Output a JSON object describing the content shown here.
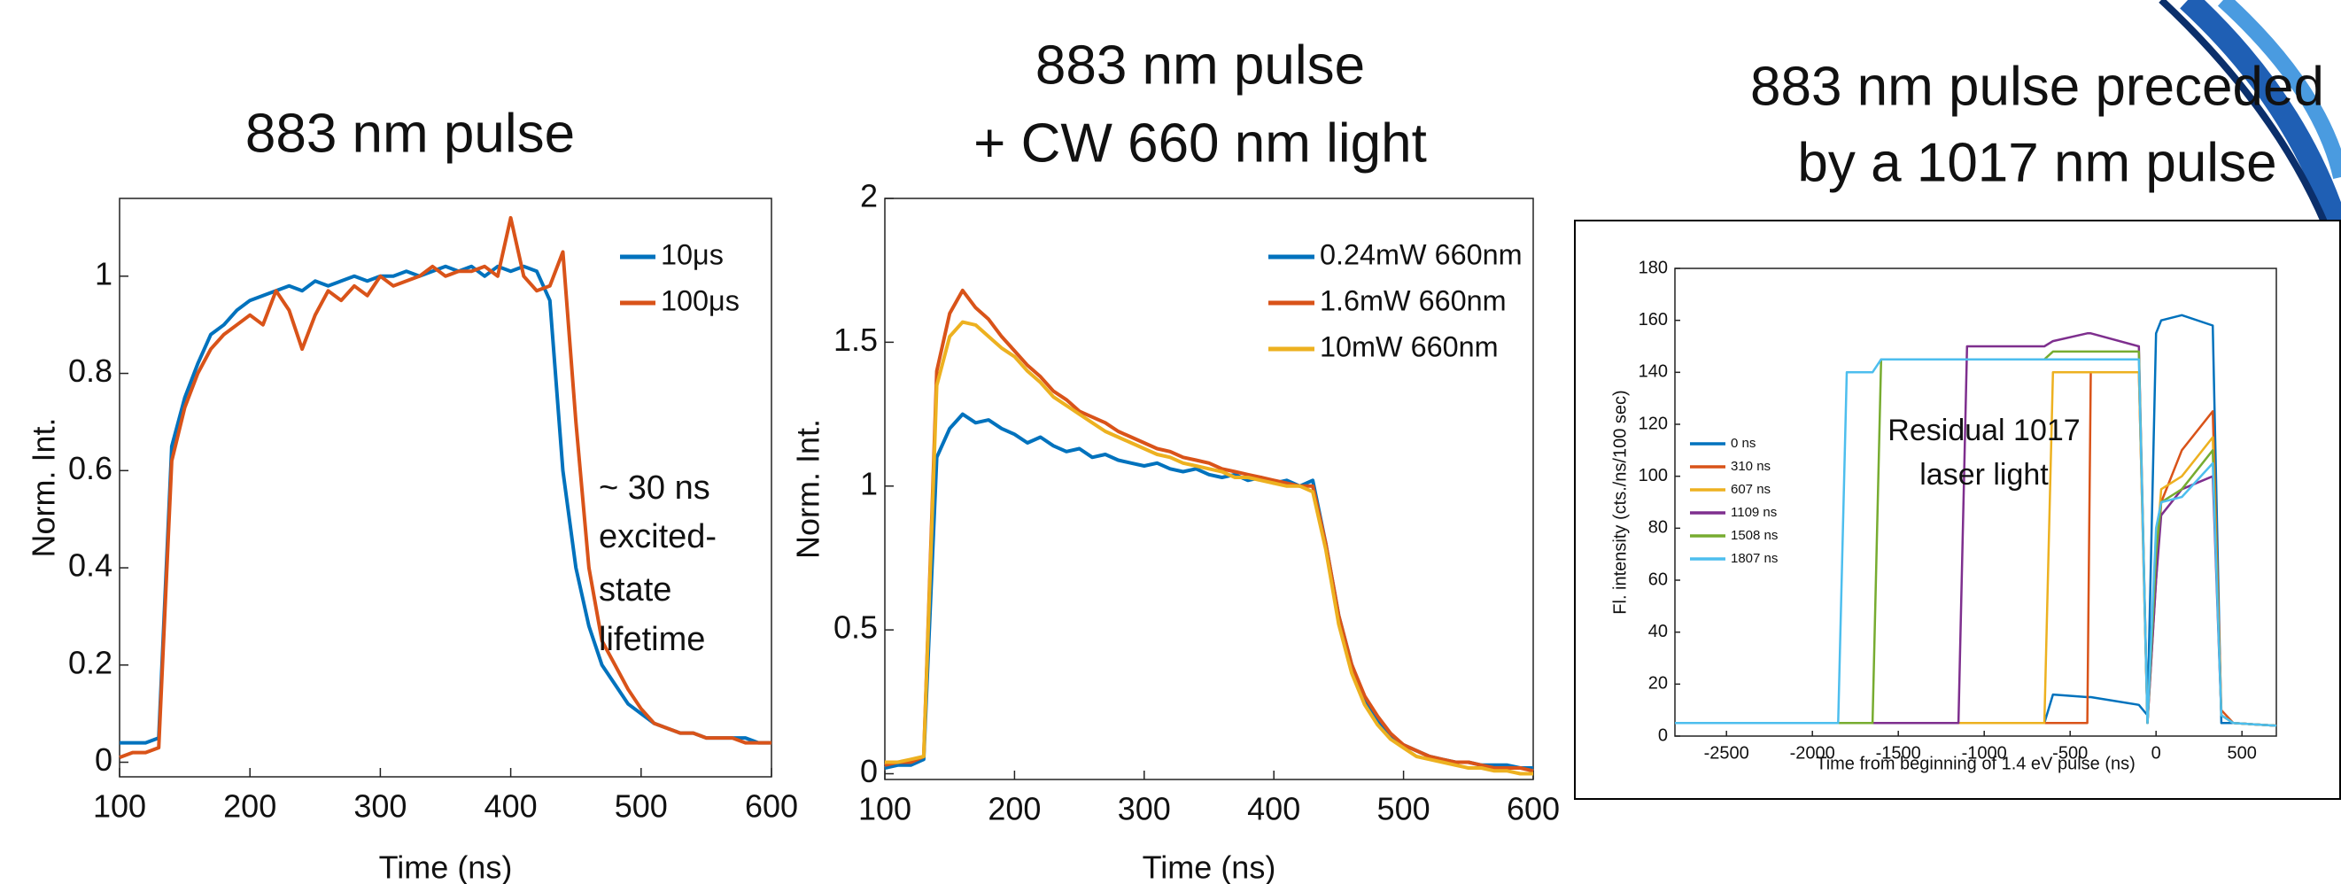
{
  "chart_data": [
    {
      "type": "line",
      "title": [
        "883 nm pulse"
      ],
      "xlabel": "Time (ns)",
      "ylabel": "Norm. Int.",
      "annotations": [
        "~ 30 ns",
        "excited-",
        "state",
        "lifetime"
      ],
      "x": [
        100,
        110,
        120,
        130,
        140,
        150,
        160,
        170,
        180,
        190,
        200,
        210,
        220,
        230,
        240,
        250,
        260,
        270,
        280,
        290,
        300,
        310,
        320,
        330,
        340,
        350,
        360,
        370,
        380,
        390,
        400,
        410,
        420,
        430,
        440,
        450,
        460,
        470,
        480,
        490,
        500,
        510,
        520,
        530,
        540,
        550,
        560,
        570,
        580,
        590,
        600
      ],
      "xlim": [
        100,
        600
      ],
      "xticks": [
        100,
        200,
        300,
        400,
        500,
        600
      ],
      "ylim": [
        -0.03,
        1.16
      ],
      "yticks": [
        0,
        0.2,
        0.4,
        0.6,
        0.8,
        1
      ],
      "series": [
        {
          "name": "10μs",
          "color": "#0072BD",
          "values": [
            0.04,
            0.04,
            0.04,
            0.05,
            0.65,
            0.75,
            0.82,
            0.88,
            0.9,
            0.93,
            0.95,
            0.96,
            0.97,
            0.98,
            0.97,
            0.99,
            0.98,
            0.99,
            1.0,
            0.99,
            1.0,
            1.0,
            1.01,
            1.0,
            1.01,
            1.02,
            1.01,
            1.02,
            1.0,
            1.02,
            1.01,
            1.02,
            1.01,
            0.95,
            0.6,
            0.4,
            0.28,
            0.2,
            0.16,
            0.12,
            0.1,
            0.08,
            0.07,
            0.06,
            0.06,
            0.05,
            0.05,
            0.05,
            0.05,
            0.04,
            0.04
          ]
        },
        {
          "name": "100μs",
          "color": "#D95319",
          "values": [
            0.01,
            0.02,
            0.02,
            0.03,
            0.62,
            0.73,
            0.8,
            0.85,
            0.88,
            0.9,
            0.92,
            0.9,
            0.97,
            0.93,
            0.85,
            0.92,
            0.97,
            0.95,
            0.98,
            0.96,
            1.0,
            0.98,
            0.99,
            1.0,
            1.02,
            1.0,
            1.01,
            1.01,
            1.02,
            1.0,
            1.12,
            1.0,
            0.97,
            0.98,
            1.05,
            0.7,
            0.4,
            0.25,
            0.2,
            0.15,
            0.11,
            0.08,
            0.07,
            0.06,
            0.06,
            0.05,
            0.05,
            0.05,
            0.04,
            0.04,
            0.04
          ]
        }
      ]
    },
    {
      "type": "line",
      "title": [
        "883 nm pulse",
        "+ CW 660 nm light"
      ],
      "xlabel": "Time (ns)",
      "ylabel": "Norm. Int.",
      "x": [
        100,
        110,
        120,
        130,
        140,
        150,
        160,
        170,
        180,
        190,
        200,
        210,
        220,
        230,
        240,
        250,
        260,
        270,
        280,
        290,
        300,
        310,
        320,
        330,
        340,
        350,
        360,
        370,
        380,
        390,
        400,
        410,
        420,
        430,
        440,
        450,
        460,
        470,
        480,
        490,
        500,
        510,
        520,
        530,
        540,
        550,
        560,
        570,
        580,
        590,
        600
      ],
      "xlim": [
        100,
        600
      ],
      "xticks": [
        100,
        200,
        300,
        400,
        500,
        600
      ],
      "ylim": [
        -0.02,
        2
      ],
      "yticks": [
        0,
        0.5,
        1,
        1.5,
        2
      ],
      "series": [
        {
          "name": "0.24mW 660nm",
          "color": "#0072BD",
          "values": [
            0.02,
            0.03,
            0.03,
            0.05,
            1.1,
            1.2,
            1.25,
            1.22,
            1.23,
            1.2,
            1.18,
            1.15,
            1.17,
            1.14,
            1.12,
            1.13,
            1.1,
            1.11,
            1.09,
            1.08,
            1.07,
            1.08,
            1.06,
            1.05,
            1.06,
            1.04,
            1.03,
            1.04,
            1.02,
            1.03,
            1.01,
            1.02,
            1.0,
            1.02,
            0.8,
            0.55,
            0.38,
            0.26,
            0.18,
            0.13,
            0.1,
            0.08,
            0.06,
            0.05,
            0.04,
            0.04,
            0.03,
            0.03,
            0.03,
            0.02,
            0.02
          ]
        },
        {
          "name": "1.6mW 660nm",
          "color": "#D95319",
          "values": [
            0.03,
            0.04,
            0.04,
            0.06,
            1.4,
            1.6,
            1.68,
            1.62,
            1.58,
            1.52,
            1.47,
            1.42,
            1.38,
            1.33,
            1.3,
            1.26,
            1.24,
            1.22,
            1.19,
            1.17,
            1.15,
            1.13,
            1.12,
            1.1,
            1.09,
            1.08,
            1.06,
            1.05,
            1.04,
            1.03,
            1.02,
            1.01,
            1.0,
            1.0,
            0.8,
            0.55,
            0.38,
            0.27,
            0.2,
            0.14,
            0.1,
            0.08,
            0.06,
            0.05,
            0.04,
            0.04,
            0.03,
            0.02,
            0.02,
            0.02,
            0.01
          ]
        },
        {
          "name": "10mW 660nm",
          "color": "#EDB120",
          "values": [
            0.04,
            0.04,
            0.05,
            0.06,
            1.35,
            1.52,
            1.57,
            1.56,
            1.52,
            1.48,
            1.45,
            1.4,
            1.36,
            1.31,
            1.28,
            1.25,
            1.22,
            1.19,
            1.17,
            1.15,
            1.13,
            1.11,
            1.1,
            1.08,
            1.07,
            1.06,
            1.05,
            1.03,
            1.03,
            1.02,
            1.01,
            1.0,
            1.0,
            0.98,
            0.78,
            0.52,
            0.35,
            0.24,
            0.17,
            0.12,
            0.09,
            0.06,
            0.05,
            0.04,
            0.03,
            0.02,
            0.02,
            0.01,
            0.01,
            0.0,
            0.0
          ]
        }
      ]
    },
    {
      "type": "line",
      "title": [
        "883 nm pulse preceded",
        "by a 1017 nm pulse"
      ],
      "xlabel": "Time from beginning of 1.4 eV pulse (ns)",
      "ylabel": "Fl. intensity (cts./ns/100 sec)",
      "annotations": [
        "Residual 1017",
        "laser light"
      ],
      "x": [
        -2800,
        -1850,
        -1800,
        -1650,
        -1600,
        -1150,
        -1100,
        -650,
        -600,
        -400,
        -380,
        -100,
        -50,
        0,
        30,
        150,
        330,
        380,
        450,
        700
      ],
      "xlim": [
        -2800,
        700
      ],
      "xticks": [
        -2500,
        -2000,
        -1500,
        -1000,
        -500,
        0,
        500
      ],
      "ylim": [
        0,
        180
      ],
      "yticks": [
        0,
        20,
        40,
        60,
        80,
        100,
        120,
        140,
        160,
        180
      ],
      "series": [
        {
          "name": "0 ns",
          "color": "#0072BD",
          "values": [
            5,
            5,
            5,
            5,
            5,
            5,
            5,
            5,
            16,
            15,
            15,
            12,
            8,
            155,
            160,
            162,
            158,
            5,
            5,
            4
          ]
        },
        {
          "name": "310 ns",
          "color": "#D95319",
          "values": [
            5,
            5,
            5,
            5,
            5,
            5,
            5,
            5,
            5,
            5,
            140,
            140,
            5,
            60,
            90,
            110,
            125,
            10,
            5,
            4
          ]
        },
        {
          "name": "607 ns",
          "color": "#EDB120",
          "values": [
            5,
            5,
            5,
            5,
            5,
            5,
            5,
            5,
            140,
            140,
            140,
            140,
            5,
            70,
            95,
            100,
            115,
            8,
            5,
            4
          ]
        },
        {
          "name": "1109 ns",
          "color": "#7E2F8E",
          "values": [
            5,
            5,
            5,
            5,
            5,
            5,
            150,
            150,
            152,
            155,
            155,
            150,
            5,
            60,
            85,
            95,
            100,
            8,
            5,
            4
          ]
        },
        {
          "name": "1508 ns",
          "color": "#77AC30",
          "values": [
            5,
            5,
            5,
            5,
            145,
            145,
            145,
            145,
            148,
            148,
            148,
            148,
            5,
            70,
            90,
            95,
            110,
            8,
            5,
            4
          ]
        },
        {
          "name": "1807 ns",
          "color": "#4DBEEE",
          "values": [
            5,
            5,
            140,
            140,
            145,
            145,
            145,
            145,
            145,
            145,
            145,
            145,
            5,
            80,
            90,
            92,
            105,
            8,
            5,
            4
          ]
        }
      ]
    }
  ]
}
